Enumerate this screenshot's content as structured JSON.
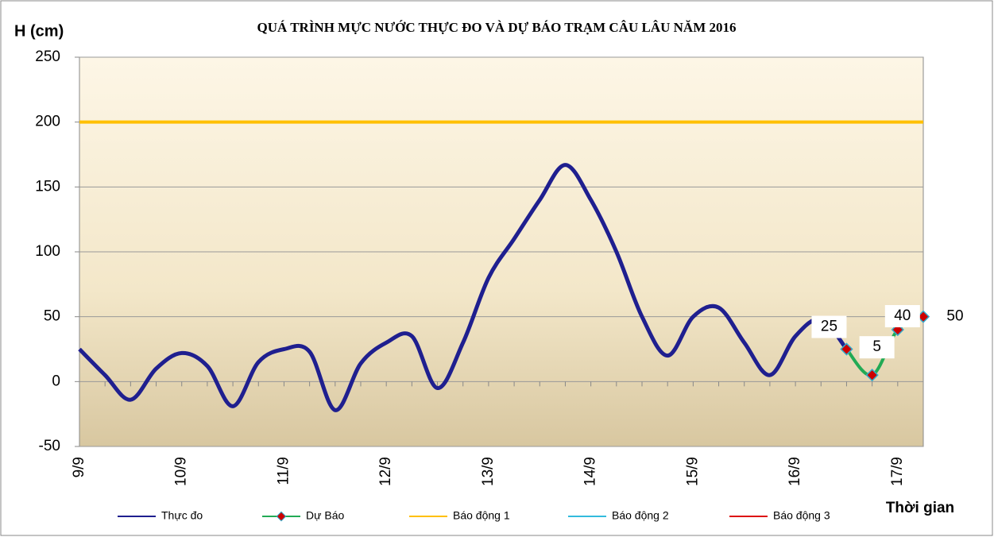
{
  "chart_data": {
    "type": "line",
    "title": "QUÁ TRÌNH MỰC NƯỚC THỰC ĐO VÀ DỰ BÁO TRẠM CÂU LÂU NĂM 2016",
    "y_label": "H (cm)",
    "x_label": "Thời gian",
    "categories": [
      "9/9",
      null,
      null,
      null,
      "10/9",
      null,
      null,
      null,
      "11/9",
      null,
      null,
      null,
      "12/9",
      null,
      null,
      null,
      "13/9",
      null,
      null,
      null,
      "14/9",
      null,
      null,
      null,
      "15/9",
      null,
      null,
      null,
      "16/9",
      null,
      null,
      null,
      "17/9",
      null
    ],
    "series": [
      {
        "name": "Thực đo",
        "color": "#1f1f8f",
        "values": [
          25,
          5,
          -14,
          10,
          22,
          12,
          -19,
          15,
          25,
          23,
          -22,
          14,
          30,
          35,
          -5,
          30,
          80,
          110,
          140,
          167,
          140,
          100,
          50,
          20,
          50,
          57,
          30,
          5,
          35,
          48,
          25,
          null,
          null,
          null
        ]
      },
      {
        "name": "Dự Báo",
        "color": "#22aa55",
        "marker_color": "#cc0000",
        "values": [
          null,
          null,
          null,
          null,
          null,
          null,
          null,
          null,
          null,
          null,
          null,
          null,
          null,
          null,
          null,
          null,
          null,
          null,
          null,
          null,
          null,
          null,
          null,
          null,
          null,
          null,
          null,
          null,
          null,
          null,
          25,
          5,
          40,
          50
        ]
      }
    ],
    "alarms": [
      {
        "name": "Báo động 1",
        "color": "#ffc000",
        "value": 200
      },
      {
        "name": "Báo động 2",
        "color": "#33bbdd"
      },
      {
        "name": "Báo động 3",
        "color": "#dd1111"
      }
    ],
    "ylim": [
      -50,
      250
    ],
    "yticks": [
      -50,
      0,
      50,
      100,
      150,
      200,
      250
    ],
    "grid": true,
    "legend": "bottom"
  }
}
